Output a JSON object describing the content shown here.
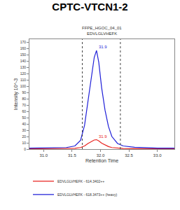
{
  "chart_data": {
    "type": "line",
    "title": "CPTC-VTCN1-2",
    "subtitle": [
      "FFPE_HGOC_04_01",
      "EDVLGLVHEFK"
    ],
    "x_label": "Retention Time",
    "y_label": "Intensity 10^-3",
    "xlim": [
      30.75,
      33.3
    ],
    "ylim": [
      0,
      175
    ],
    "xticks": [
      {
        "value": 31,
        "label": "31.0"
      },
      {
        "value": 31.5,
        "label": "31.5"
      },
      {
        "value": 32,
        "label": "32.0"
      },
      {
        "value": 32.5,
        "label": "32.5"
      },
      {
        "value": 33,
        "label": "33.0"
      }
    ],
    "yticks": [
      0,
      10,
      20,
      30,
      40,
      50,
      60,
      70,
      80,
      90,
      100,
      110,
      120,
      130,
      140,
      150,
      160,
      170
    ],
    "grid": false,
    "legend": "bottom",
    "boundaries": [
      31.68,
      32.35
    ],
    "series": [
      {
        "name": "EDVLGLVHEFK - 614.3402++",
        "color": "#e8231f",
        "line_style": "solid",
        "x": [
          30.75,
          31.0,
          31.2,
          31.4,
          31.55,
          31.65,
          31.72,
          31.78,
          31.84,
          31.89,
          31.93,
          31.97,
          32.02,
          32.08,
          32.14,
          32.2,
          32.3,
          32.4,
          32.6,
          32.8,
          33.0,
          33.3
        ],
        "values": [
          0.5,
          0.6,
          0.5,
          0.8,
          1.2,
          2.5,
          5,
          9,
          12.5,
          14.5,
          15,
          13,
          9.5,
          6.5,
          4,
          2.5,
          1.5,
          1,
          0.8,
          0.6,
          0.5,
          0.5
        ]
      },
      {
        "name": "EDVLGLVHEFK - 618.3473++ (heavy)",
        "color": "#1f1fd8",
        "line_style": "solid",
        "x": [
          30.75,
          31.0,
          31.2,
          31.4,
          31.55,
          31.65,
          31.72,
          31.78,
          31.84,
          31.89,
          31.93,
          31.97,
          32.02,
          32.08,
          32.14,
          32.2,
          32.3,
          32.4,
          32.6,
          32.8,
          33.0,
          33.3
        ],
        "values": [
          1.5,
          1.8,
          1.5,
          2.5,
          5,
          14,
          38,
          78,
          118,
          146,
          157,
          138,
          98,
          62,
          36,
          20,
          9,
          5,
          3,
          2,
          1.5,
          1.5
        ]
      }
    ],
    "annotations": [
      {
        "x": 31.93,
        "y": 157,
        "text": "31.9",
        "color": "#1f1fd8"
      },
      {
        "x": 31.93,
        "y": 15,
        "text": "31.9",
        "color": "#e8231f"
      }
    ]
  }
}
